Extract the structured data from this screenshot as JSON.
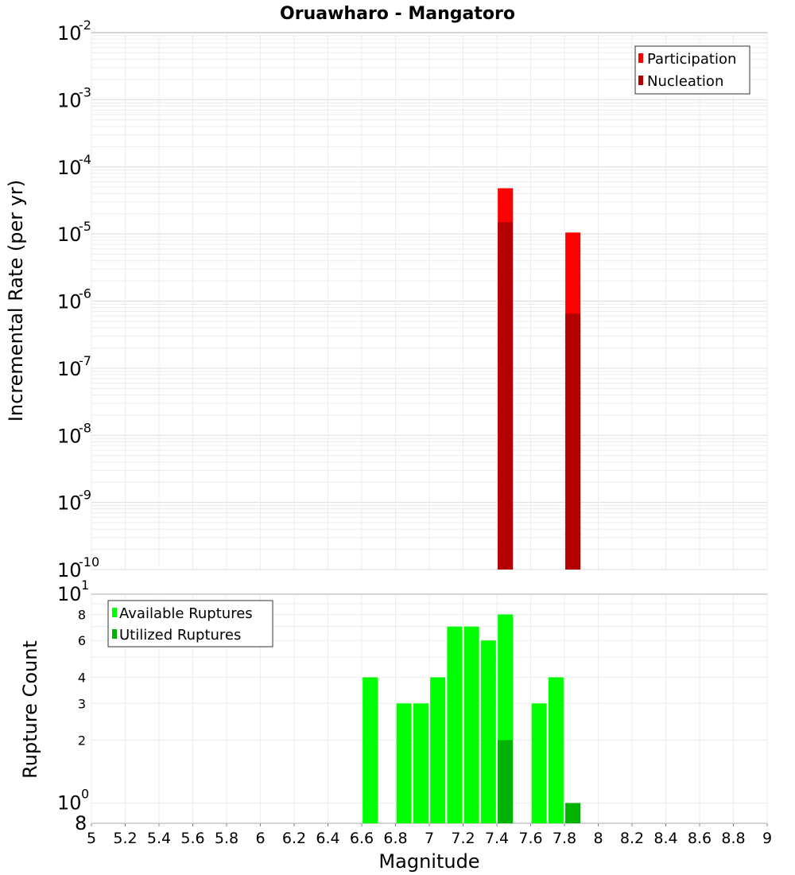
{
  "chart_data": [
    {
      "type": "bar",
      "title": "Oruawharo - Mangatoro",
      "xlabel": "",
      "ylabel": "Incremental Rate (per yr)",
      "yscale": "log",
      "xlim": [
        5,
        9
      ],
      "ylim": [
        1e-10,
        0.01
      ],
      "y_exponents": [
        "-10",
        "-9",
        "-8",
        "-7",
        "-6",
        "-5",
        "-4",
        "-3",
        "-2"
      ],
      "y_base": "10",
      "legend_position": "top-right",
      "series": [
        {
          "name": "Participation",
          "color": "#ff0000",
          "points": [
            {
              "x": 7.45,
              "y": 4.8e-05
            },
            {
              "x": 7.85,
              "y": 1.05e-05
            }
          ]
        },
        {
          "name": "Nucleation",
          "color": "#b30000",
          "points": [
            {
              "x": 7.45,
              "y": 1.5e-05
            },
            {
              "x": 7.85,
              "y": 6.5e-07
            }
          ]
        }
      ]
    },
    {
      "type": "bar",
      "title": "",
      "xlabel": "Magnitude",
      "ylabel": "Rupture Count",
      "yscale": "log",
      "xlim": [
        5,
        9
      ],
      "ylim": [
        0.8,
        10
      ],
      "x_ticks": [
        "5",
        "5.2",
        "5.4",
        "5.6",
        "5.8",
        "6",
        "6.2",
        "6.4",
        "6.6",
        "6.8",
        "7",
        "7.2",
        "7.4",
        "7.6",
        "7.8",
        "8",
        "8.2",
        "8.4",
        "8.6",
        "8.8",
        "9"
      ],
      "y_tick_labels": [
        {
          "v": 2,
          "label": "2"
        },
        {
          "v": 3,
          "label": "3"
        },
        {
          "v": 4,
          "label": "4"
        },
        {
          "v": 6,
          "label": "6"
        },
        {
          "v": 8,
          "label": "8"
        }
      ],
      "y_bottom_label": "8",
      "y_base": "10",
      "y_decade_exponents": {
        "one": "0",
        "ten": "1"
      },
      "legend_position": "top-left",
      "series": [
        {
          "name": "Available Ruptures",
          "color": "#00ff00",
          "points": [
            {
              "x": 6.65,
              "y": 4
            },
            {
              "x": 6.85,
              "y": 3
            },
            {
              "x": 6.95,
              "y": 3
            },
            {
              "x": 7.05,
              "y": 4
            },
            {
              "x": 7.15,
              "y": 7
            },
            {
              "x": 7.25,
              "y": 7
            },
            {
              "x": 7.35,
              "y": 6
            },
            {
              "x": 7.45,
              "y": 8
            },
            {
              "x": 7.65,
              "y": 3
            },
            {
              "x": 7.75,
              "y": 4
            },
            {
              "x": 7.85,
              "y": 1
            }
          ]
        },
        {
          "name": "Utilized Ruptures",
          "color": "#00b300",
          "points": [
            {
              "x": 7.45,
              "y": 2
            },
            {
              "x": 7.85,
              "y": 1
            }
          ]
        }
      ]
    }
  ]
}
